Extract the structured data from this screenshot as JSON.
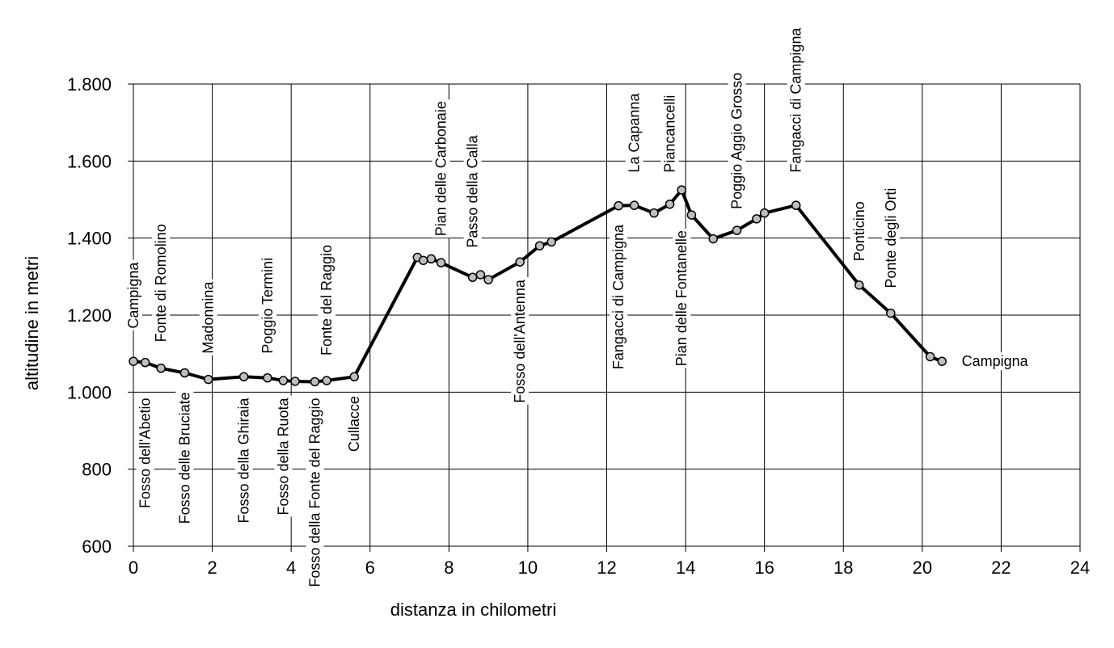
{
  "chart_data": {
    "type": "line",
    "xlabel": "distanza in chilometri",
    "ylabel": "altitudine  in metri",
    "xlim": [
      0,
      24
    ],
    "ylim": [
      600,
      1800
    ],
    "xticks": [
      0,
      2,
      4,
      6,
      8,
      10,
      12,
      14,
      16,
      18,
      20,
      22,
      24
    ],
    "xtick_labels": [
      "0",
      "2",
      "4",
      "6",
      "8",
      "10",
      "12",
      "14",
      "16",
      "18",
      "20",
      "22",
      "24"
    ],
    "yticks": [
      600,
      800,
      1000,
      1200,
      1400,
      1600,
      1800
    ],
    "ytick_labels": [
      "600",
      "800",
      "1.000",
      "1.200",
      "1.400",
      "1.600",
      "1.800"
    ],
    "grid": true,
    "series": [
      {
        "x": [
          0.0,
          0.3,
          0.7,
          1.3,
          1.9,
          2.8,
          3.4,
          3.8,
          4.1,
          4.6,
          4.9,
          5.6,
          7.2,
          7.35,
          7.55,
          7.8,
          8.6,
          8.8,
          9.0,
          9.8,
          10.3,
          10.6,
          12.3,
          12.7,
          13.2,
          13.6,
          13.9,
          14.15,
          14.7,
          15.3,
          15.8,
          16.0,
          16.8,
          18.4,
          19.2,
          20.2,
          20.5
        ],
        "y": [
          1080,
          1077,
          1062,
          1050,
          1033,
          1040,
          1037,
          1030,
          1028,
          1027,
          1030,
          1040,
          1350,
          1342,
          1346,
          1336,
          1298,
          1305,
          1292,
          1338,
          1380,
          1390,
          1484,
          1485,
          1465,
          1488,
          1525,
          1460,
          1398,
          1420,
          1450,
          1465,
          1485,
          1278,
          1205,
          1092,
          1080
        ]
      }
    ],
    "annotations": [
      {
        "text": "Campigna",
        "x": 0.0,
        "alt": 1165,
        "side": "above",
        "orient": "vertical"
      },
      {
        "text": "Fonte di Romolino",
        "x": 0.7,
        "alt": 1130,
        "side": "above",
        "orient": "vertical"
      },
      {
        "text": "Madonnina",
        "x": 1.9,
        "alt": 1100,
        "side": "above",
        "orient": "vertical"
      },
      {
        "text": "Poggio Termini",
        "x": 3.4,
        "alt": 1100,
        "side": "above",
        "orient": "vertical"
      },
      {
        "text": "Fonte del Raggio",
        "x": 4.9,
        "alt": 1095,
        "side": "above",
        "orient": "vertical"
      },
      {
        "text": "Fosso dell'Abetio",
        "x": 0.3,
        "alt": 985,
        "side": "below",
        "orient": "vertical"
      },
      {
        "text": "Fosso delle Bruciate",
        "x": 1.3,
        "alt": 1000,
        "side": "below",
        "orient": "vertical"
      },
      {
        "text": "Fosso della Ghiraia",
        "x": 2.8,
        "alt": 985,
        "side": "below",
        "orient": "vertical"
      },
      {
        "text": "Fosso della Ruota",
        "x": 3.8,
        "alt": 985,
        "side": "below",
        "orient": "vertical"
      },
      {
        "text": "Fosso della Fonte del Raggio",
        "x": 4.6,
        "alt": 985,
        "side": "below",
        "orient": "vertical"
      },
      {
        "text": "Cullacce",
        "x": 5.6,
        "alt": 990,
        "side": "below",
        "orient": "vertical"
      },
      {
        "text": "Pian delle Carbonaie",
        "x": 7.8,
        "alt": 1405,
        "side": "above",
        "orient": "vertical"
      },
      {
        "text": "Passo della Calla",
        "x": 8.6,
        "alt": 1375,
        "side": "above",
        "orient": "vertical"
      },
      {
        "text": "Fosso dell'Antenna",
        "x": 9.8,
        "alt": 1292,
        "side": "below",
        "orient": "vertical"
      },
      {
        "text": "La Capanna",
        "x": 12.7,
        "alt": 1570,
        "side": "above",
        "orient": "vertical"
      },
      {
        "text": "Piancancelli",
        "x": 13.6,
        "alt": 1570,
        "side": "above",
        "orient": "vertical"
      },
      {
        "text": "Poggio Aggio Grosso",
        "x": 15.3,
        "alt": 1475,
        "side": "above",
        "orient": "vertical"
      },
      {
        "text": "Fangacci di Campigna",
        "x": 16.8,
        "alt": 1570,
        "side": "above",
        "orient": "vertical"
      },
      {
        "text": "Fangacci di Campigna",
        "x": 12.3,
        "alt": 1435,
        "side": "below",
        "orient": "vertical"
      },
      {
        "text": "Pian delle Fontanelle",
        "x": 13.9,
        "alt": 1420,
        "side": "below",
        "orient": "vertical"
      },
      {
        "text": "Ponticino",
        "x": 18.4,
        "alt": 1340,
        "side": "above",
        "orient": "vertical"
      },
      {
        "text": "Ponte degli Orti",
        "x": 19.2,
        "alt": 1270,
        "side": "above",
        "orient": "vertical"
      },
      {
        "text": "Campigna",
        "x": 21.0,
        "alt": 1080,
        "side": "right",
        "orient": "horizontal"
      }
    ]
  }
}
